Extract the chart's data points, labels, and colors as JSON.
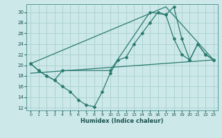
{
  "xlabel": "Humidex (Indice chaleur)",
  "bg_color": "#cce8e8",
  "grid_color": "#aacfcf",
  "line_color": "#2a7a70",
  "xlim": [
    -0.5,
    23.5
  ],
  "ylim": [
    11.5,
    31.5
  ],
  "xticks": [
    0,
    1,
    2,
    3,
    4,
    5,
    6,
    7,
    8,
    9,
    10,
    11,
    12,
    13,
    14,
    15,
    16,
    17,
    18,
    19,
    20,
    21,
    22,
    23
  ],
  "yticks": [
    12,
    14,
    16,
    18,
    20,
    22,
    24,
    26,
    28,
    30
  ],
  "lines": [
    {
      "x": [
        0,
        1,
        2,
        3,
        4,
        5,
        6,
        7,
        8,
        9,
        10,
        11,
        12,
        13,
        14,
        15,
        16,
        17,
        18,
        19,
        20,
        21,
        22,
        23
      ],
      "y": [
        20.3,
        19.0,
        18.0,
        17.2,
        16.0,
        15.0,
        13.5,
        12.5,
        12.2,
        15.0,
        18.5,
        21.0,
        21.5,
        24.0,
        26.0,
        28.0,
        30.0,
        29.5,
        31.0,
        25.0,
        21.0,
        24.0,
        22.0,
        21.0
      ],
      "marker": true
    },
    {
      "x": [
        0,
        1,
        2,
        3,
        4,
        10,
        15,
        17,
        18,
        19,
        20,
        21,
        22,
        23
      ],
      "y": [
        20.3,
        19.0,
        18.0,
        17.2,
        19.0,
        19.0,
        30.0,
        29.5,
        25.0,
        22.0,
        21.0,
        24.0,
        22.0,
        21.0
      ],
      "marker": true
    },
    {
      "x": [
        0,
        23
      ],
      "y": [
        18.5,
        21.0
      ],
      "marker": false
    },
    {
      "x": [
        0,
        17,
        23
      ],
      "y": [
        20.3,
        31.0,
        21.0
      ],
      "marker": false
    }
  ]
}
